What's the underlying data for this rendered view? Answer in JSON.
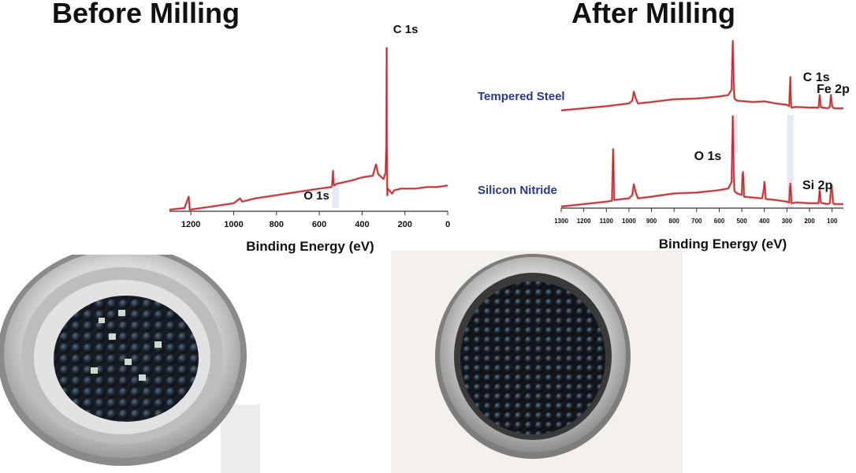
{
  "titles": {
    "before": "Before Milling",
    "after": "After Milling"
  },
  "colors": {
    "spectrum": "#c8203a",
    "peak_line": "#c98a6a",
    "series_label": "#2a3a8a",
    "title": "#111111"
  },
  "chart_data": [
    {
      "type": "line",
      "title": "Before Milling",
      "xlabel": "Binding Energy (eV)",
      "ylabel": "",
      "xlim": [
        1300,
        0
      ],
      "x_reversed": true,
      "xticks": [
        1200,
        1000,
        800,
        600,
        400,
        200,
        0
      ],
      "grid": false,
      "series": [
        {
          "name": "",
          "x": [
            1300,
            1230,
            1210,
            1205,
            1100,
            1000,
            970,
            960,
            900,
            800,
            700,
            600,
            545,
            540,
            536,
            533,
            530,
            520,
            450,
            400,
            350,
            335,
            325,
            300,
            290,
            287,
            285,
            284,
            283,
            282,
            280,
            260,
            250,
            220,
            200,
            150,
            100,
            50,
            0
          ],
          "y": [
            0.0,
            0.01,
            0.08,
            0.0,
            0.02,
            0.04,
            0.07,
            0.05,
            0.07,
            0.09,
            0.11,
            0.13,
            0.14,
            0.15,
            0.24,
            0.16,
            0.15,
            0.16,
            0.18,
            0.2,
            0.21,
            0.28,
            0.22,
            0.19,
            0.23,
            0.4,
            1.0,
            0.4,
            0.18,
            0.09,
            0.13,
            0.1,
            0.12,
            0.13,
            0.13,
            0.13,
            0.14,
            0.14,
            0.15
          ]
        }
      ],
      "annotations": [
        {
          "text": "C 1s",
          "x": 285
        },
        {
          "text": "O 1s",
          "x": 532
        }
      ]
    },
    {
      "type": "line",
      "title": "After Milling",
      "xlabel": "Binding Energy (eV)",
      "ylabel": "",
      "xlim": [
        1300,
        50
      ],
      "x_reversed": true,
      "xticks": [
        1300,
        1200,
        1100,
        1000,
        900,
        800,
        700,
        600,
        500,
        400,
        300,
        200,
        100
      ],
      "grid": false,
      "series": [
        {
          "name": "Tempered Steel",
          "x": [
            1300,
            1200,
            1100,
            1000,
            985,
            978,
            970,
            960,
            900,
            800,
            700,
            600,
            560,
            545,
            540,
            536,
            533,
            530,
            520,
            450,
            400,
            350,
            300,
            290,
            287,
            285,
            283,
            280,
            260,
            200,
            160,
            155,
            150,
            145,
            140,
            120,
            110,
            105,
            100,
            95,
            90,
            70,
            50
          ],
          "y": [
            0.0,
            0.03,
            0.06,
            0.1,
            0.14,
            0.27,
            0.17,
            0.1,
            0.12,
            0.16,
            0.17,
            0.2,
            0.22,
            0.3,
            1.0,
            0.42,
            0.18,
            0.16,
            0.14,
            0.12,
            0.13,
            0.1,
            0.08,
            0.06,
            0.3,
            0.48,
            0.16,
            0.04,
            0.05,
            0.04,
            0.04,
            0.22,
            0.05,
            0.04,
            0.04,
            0.03,
            0.05,
            0.22,
            0.06,
            0.04,
            0.03,
            0.03,
            0.03
          ]
        },
        {
          "name": "Silicon Nitride",
          "x": [
            1300,
            1200,
            1100,
            1075,
            1072,
            1070,
            1068,
            1065,
            1000,
            985,
            978,
            970,
            960,
            900,
            800,
            700,
            600,
            560,
            545,
            540,
            536,
            533,
            530,
            520,
            500,
            497,
            495,
            493,
            490,
            450,
            410,
            402,
            400,
            397,
            395,
            390,
            350,
            300,
            290,
            287,
            285,
            283,
            280,
            260,
            200,
            160,
            155,
            150,
            145,
            140,
            120,
            110,
            105,
            102,
            100,
            95,
            90,
            70,
            50
          ],
          "y": [
            0.0,
            0.03,
            0.06,
            0.07,
            0.45,
            0.7,
            0.45,
            0.08,
            0.1,
            0.14,
            0.27,
            0.17,
            0.1,
            0.12,
            0.16,
            0.17,
            0.2,
            0.22,
            0.3,
            1.1,
            0.45,
            0.2,
            0.18,
            0.16,
            0.14,
            0.38,
            0.42,
            0.36,
            0.12,
            0.11,
            0.1,
            0.22,
            0.3,
            0.22,
            0.1,
            0.09,
            0.08,
            0.06,
            0.05,
            0.22,
            0.28,
            0.2,
            0.04,
            0.05,
            0.04,
            0.04,
            0.2,
            0.05,
            0.04,
            0.04,
            0.03,
            0.04,
            0.2,
            0.26,
            0.18,
            0.04,
            0.03,
            0.03,
            0.03
          ]
        }
      ],
      "annotations": [
        {
          "text": "Fe 2p",
          "x": 710
        },
        {
          "text": "C 1s",
          "x": 285
        },
        {
          "text": "O 1s",
          "x": 532
        },
        {
          "text": "Si 2p",
          "x": 102
        }
      ]
    }
  ]
}
